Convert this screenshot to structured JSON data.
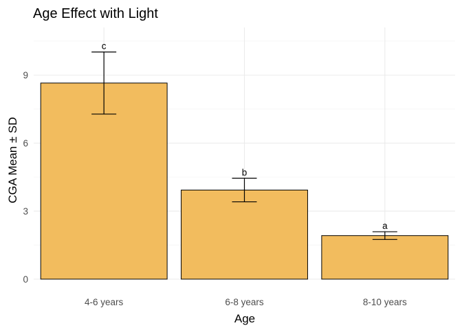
{
  "chart_data": {
    "type": "bar",
    "title": "Age Effect with Light",
    "xlabel": "Age",
    "ylabel": "CGA Mean ± SD",
    "categories": [
      "4-6 years",
      "6-8 years",
      "8-10 years"
    ],
    "values": [
      8.65,
      3.93,
      1.92
    ],
    "sd": [
      1.37,
      0.52,
      0.17
    ],
    "significance_labels": [
      "c",
      "b",
      "a"
    ],
    "yticks": [
      0,
      3,
      6,
      9
    ],
    "ytick_labels": [
      "0",
      "3",
      "6",
      "9"
    ],
    "ylim": [
      0,
      11.1
    ],
    "bar_color": "#F2BC5E",
    "grid": true
  }
}
